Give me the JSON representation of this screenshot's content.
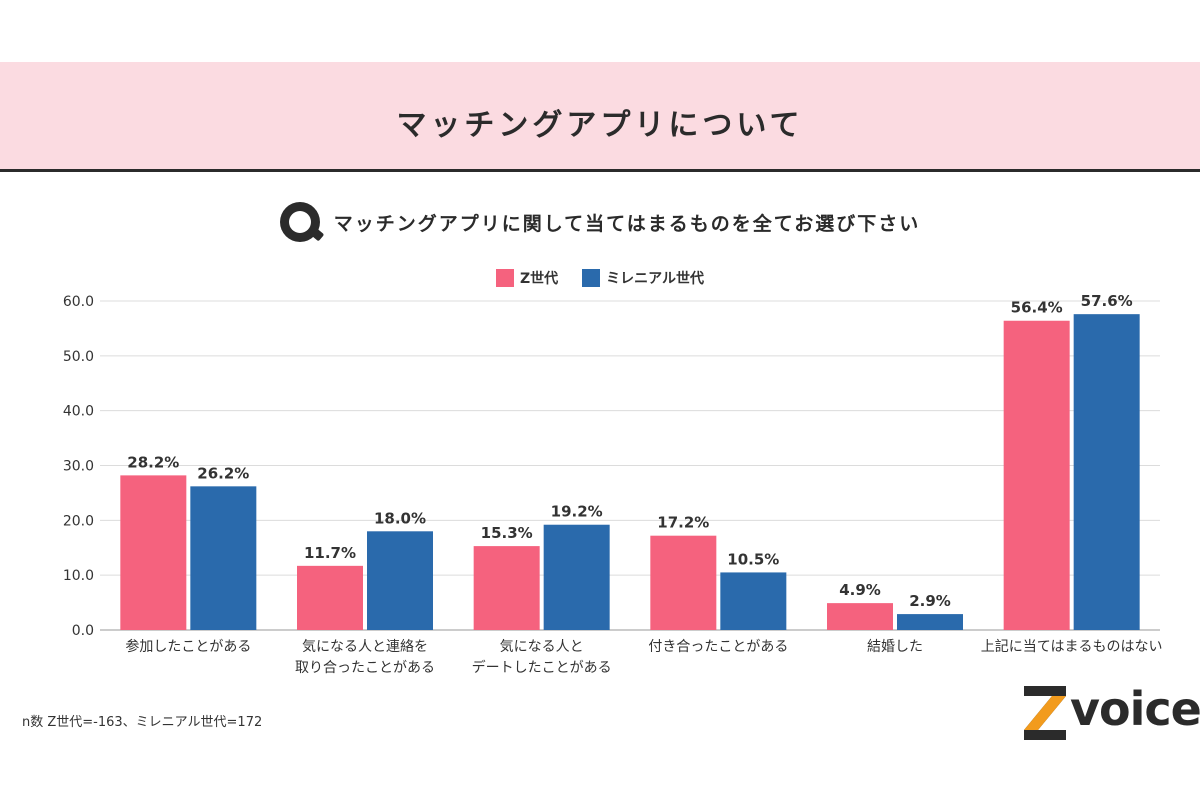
{
  "header": {
    "title": "マッチングアプリについて"
  },
  "question": {
    "text": "マッチングアプリに関して当てはまるものを全てお選び下さい",
    "icon": "q-icon"
  },
  "legend": [
    {
      "label": "Z世代",
      "color": "#f5627e"
    },
    {
      "label": "ミレニアル世代",
      "color": "#2a6aac"
    }
  ],
  "footnote": "n数 Z世代=-163、ミレニアル世代=172",
  "logo": {
    "text": "voice",
    "mark": "Z",
    "accent": "#f29b1d"
  },
  "chart_data": {
    "type": "bar",
    "categories": [
      [
        "参加したことがある"
      ],
      [
        "気になる人と連絡を",
        "取り合ったことがある"
      ],
      [
        "気になる人と",
        "デートしたことがある"
      ],
      [
        "付き合ったことがある"
      ],
      [
        "結婚した"
      ],
      [
        "上記に当てはまるものはない"
      ]
    ],
    "series": [
      {
        "name": "Z世代",
        "color": "#f5627e",
        "values": [
          28.2,
          11.7,
          15.3,
          17.2,
          4.9,
          56.4
        ]
      },
      {
        "name": "ミレニアル世代",
        "color": "#2a6aac",
        "values": [
          26.2,
          18.0,
          19.2,
          10.5,
          2.9,
          57.6
        ]
      }
    ],
    "ylim": [
      0,
      60
    ],
    "yticks": [
      "0.0",
      "10.0",
      "20.0",
      "30.0",
      "40.0",
      "50.0",
      "60.0"
    ],
    "value_suffix": "%",
    "grid": true
  }
}
